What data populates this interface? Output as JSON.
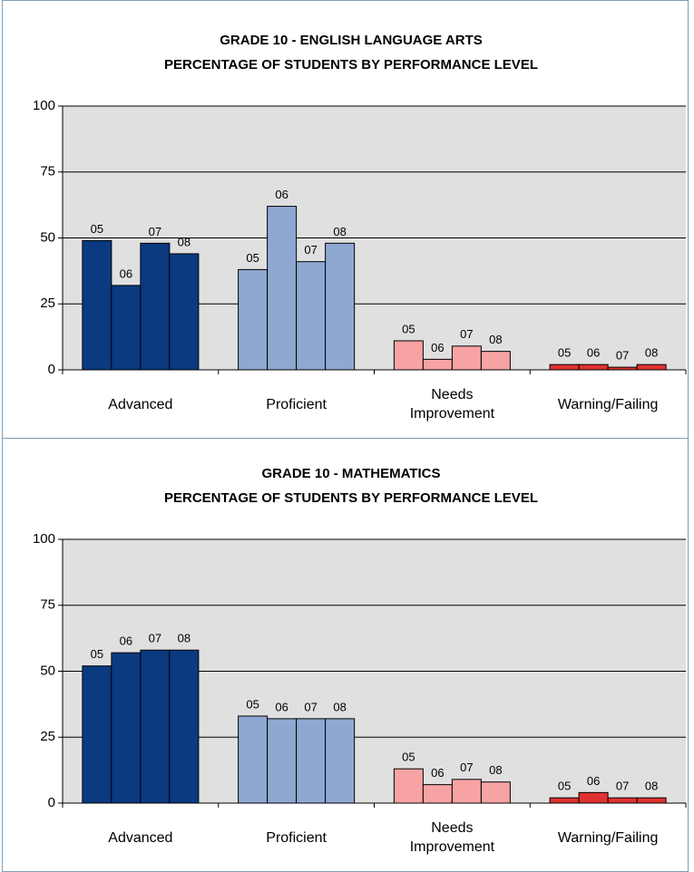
{
  "chart_data": [
    {
      "type": "bar",
      "title": "GRADE 10 - ENGLISH LANGUAGE ARTS",
      "subtitle": "PERCENTAGE OF STUDENTS BY PERFORMANCE LEVEL",
      "categories": [
        "Advanced",
        "Proficient",
        "Needs Improvement",
        "Warning/Failing"
      ],
      "category_colors": [
        "#0b3a80",
        "#8fa8d2",
        "#f7a3a3",
        "#e03131"
      ],
      "series": [
        {
          "name": "05",
          "values": [
            49,
            38,
            11,
            2
          ]
        },
        {
          "name": "06",
          "values": [
            32,
            62,
            4,
            2
          ]
        },
        {
          "name": "07",
          "values": [
            48,
            41,
            9,
            1
          ]
        },
        {
          "name": "08",
          "values": [
            44,
            48,
            7,
            2
          ]
        }
      ],
      "ylim": [
        0,
        100
      ],
      "yticks": [
        0,
        25,
        50,
        75,
        100
      ],
      "grid": true
    },
    {
      "type": "bar",
      "title": "GRADE 10 - MATHEMATICS",
      "subtitle": "PERCENTAGE OF STUDENTS BY PERFORMANCE LEVEL",
      "categories": [
        "Advanced",
        "Proficient",
        "Needs Improvement",
        "Warning/Failing"
      ],
      "category_colors": [
        "#0b3a80",
        "#8fa8d2",
        "#f7a3a3",
        "#e03131"
      ],
      "series": [
        {
          "name": "05",
          "values": [
            52,
            33,
            13,
            2
          ]
        },
        {
          "name": "06",
          "values": [
            57,
            32,
            7,
            4
          ]
        },
        {
          "name": "07",
          "values": [
            58,
            32,
            9,
            2
          ]
        },
        {
          "name": "08",
          "values": [
            58,
            32,
            8,
            2
          ]
        }
      ],
      "ylim": [
        0,
        100
      ],
      "yticks": [
        0,
        25,
        50,
        75,
        100
      ],
      "grid": true
    }
  ]
}
